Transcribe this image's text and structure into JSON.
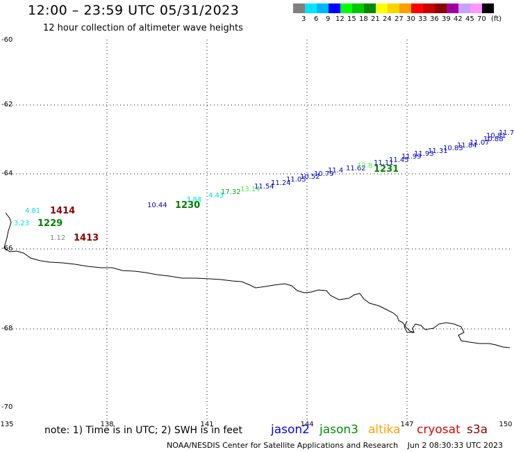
{
  "header": {
    "title": "12:00 – 23:59 UTC 05/31/2023",
    "subtitle": "12 hour collection of altimeter wave heights"
  },
  "legend": {
    "colors": [
      "#808080",
      "#00e5ff",
      "#00b4ff",
      "#0000ff",
      "#00ff00",
      "#00c800",
      "#008c00",
      "#ffff00",
      "#ffd200",
      "#ffa000",
      "#ff0000",
      "#c80000",
      "#8c0000",
      "#a000a0",
      "#c8a0ff",
      "#ff96ff",
      "#000000"
    ],
    "labels": [
      "3",
      "6",
      "9",
      "12",
      "15",
      "18",
      "21",
      "24",
      "27",
      "30",
      "33",
      "36",
      "39",
      "42",
      "45",
      "70",
      "(ft)"
    ]
  },
  "axes": {
    "lat_labels": [
      "-60",
      "-62",
      "-64",
      "-66",
      "-68",
      "-70"
    ],
    "lon_labels": [
      "135",
      "138",
      "141",
      "144",
      "147",
      "150"
    ]
  },
  "observations": [
    {
      "value": "4.81",
      "color": "#00e0e0"
    },
    {
      "value": "3.23",
      "color": "#00e0e0"
    },
    {
      "value": "1.12",
      "color": "#808080"
    },
    {
      "value": "10.44",
      "color": "#0000cc"
    },
    {
      "value": "3.84",
      "color": "#00e0e0"
    },
    {
      "value": "4.43",
      "color": "#00e0e0"
    },
    {
      "value": "17.32",
      "color": "#00b000"
    },
    {
      "value": "13.14",
      "color": "#44ee44"
    },
    {
      "value": "11.54",
      "color": "#0000cc"
    },
    {
      "value": "11.24",
      "color": "#0000cc"
    },
    {
      "value": "11.05",
      "color": "#0000cc"
    },
    {
      "value": "10.52",
      "color": "#0000cc"
    },
    {
      "value": "10.79",
      "color": "#0000cc"
    },
    {
      "value": "11.4",
      "color": "#0000cc"
    },
    {
      "value": "11.62",
      "color": "#0000cc"
    },
    {
      "value": "12.8",
      "color": "#44ee44"
    },
    {
      "value": "11.11",
      "color": "#0000cc"
    },
    {
      "value": "11.45",
      "color": "#0000cc"
    },
    {
      "value": "11.99",
      "color": "#0000cc"
    },
    {
      "value": "11.93",
      "color": "#0000cc"
    },
    {
      "value": "11.31",
      "color": "#0000cc"
    },
    {
      "value": "10.83",
      "color": "#0000cc"
    },
    {
      "value": "11.84",
      "color": "#0000cc"
    },
    {
      "value": "11.07",
      "color": "#0000cc"
    },
    {
      "value": "10.88",
      "color": "#0000cc"
    },
    {
      "value": "10.81",
      "color": "#0000cc"
    },
    {
      "value": "11.7",
      "color": "#0000cc"
    }
  ],
  "time_labels": [
    {
      "value": "1414",
      "color": "#8b0000"
    },
    {
      "value": "1229",
      "color": "#008000"
    },
    {
      "value": "1413",
      "color": "#8b0000"
    },
    {
      "value": "1230",
      "color": "#008000"
    },
    {
      "value": "1231",
      "color": "#008000"
    }
  ],
  "footer": {
    "note": "note: 1) Time is in UTC; 2) SWH is in feet",
    "satellites": [
      {
        "name": "jason2",
        "color": "#0000ff"
      },
      {
        "name": "jason3",
        "color": "#008c00"
      },
      {
        "name": "altika",
        "color": "#ffa000"
      },
      {
        "name": "cryosat",
        "color": "#e00000"
      },
      {
        "name": "s3a",
        "color": "#8b0000"
      }
    ],
    "credit": "NOAA/NESDIS Center for Satellite Applications and Research",
    "timestamp": "Jun  2 08:30:33 UTC 2023"
  }
}
